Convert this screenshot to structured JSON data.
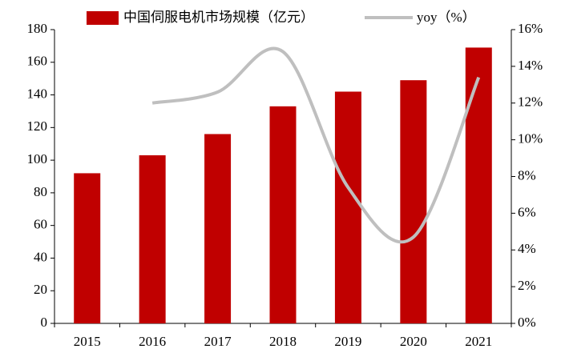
{
  "chart_data": {
    "type": "bar",
    "categories": [
      "2015",
      "2016",
      "2017",
      "2018",
      "2019",
      "2020",
      "2021"
    ],
    "series": [
      {
        "name": "中国伺服电机市场规模（亿元）",
        "color": "#c00000",
        "type": "bar",
        "values": [
          92,
          103,
          116,
          133,
          142,
          149,
          169
        ]
      },
      {
        "name": "yoy（%）",
        "color": "#bfbfbf",
        "type": "line",
        "axis": "y2",
        "smooth": true,
        "values": [
          null,
          12.0,
          12.6,
          14.8,
          7.4,
          4.7,
          13.4
        ]
      }
    ],
    "ylim": [
      0,
      180
    ],
    "yticks": [
      0,
      20,
      40,
      60,
      80,
      100,
      120,
      140,
      160,
      180
    ],
    "y2lim": [
      0,
      16
    ],
    "y2ticks": [
      {
        "value": 0,
        "label": "0%"
      },
      {
        "value": 2,
        "label": "2%"
      },
      {
        "value": 4,
        "label": "4%"
      },
      {
        "value": 6,
        "label": "6%"
      },
      {
        "value": 8,
        "label": "8%"
      },
      {
        "value": 10,
        "label": "10%"
      },
      {
        "value": 12,
        "label": "12%"
      },
      {
        "value": 14,
        "label": "14%"
      },
      {
        "value": 16,
        "label": "16%"
      }
    ],
    "grid": false,
    "legend": "top"
  }
}
